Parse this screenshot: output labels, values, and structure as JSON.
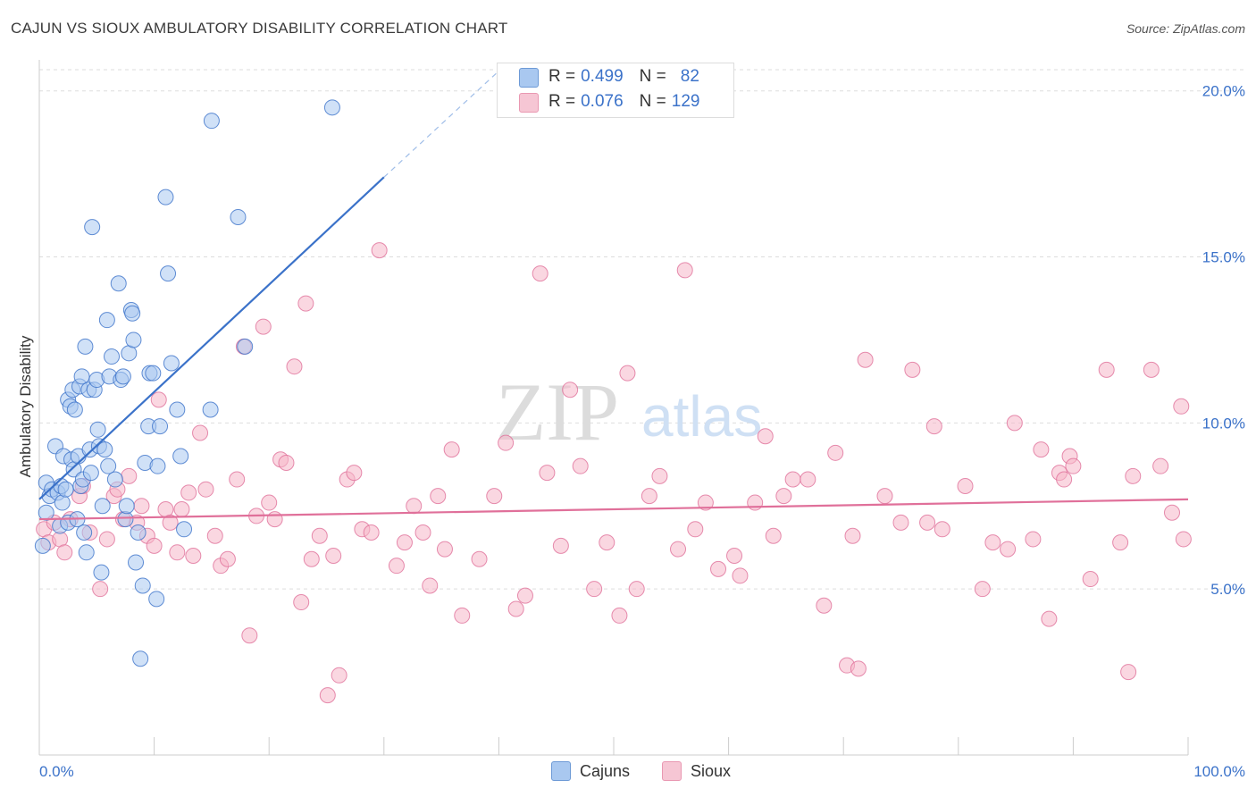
{
  "header": {
    "title": "CAJUN VS SIOUX AMBULATORY DISABILITY CORRELATION CHART",
    "source": "Source: ZipAtlas.com"
  },
  "watermark": {
    "zip": "ZIP",
    "atlas": "atlas"
  },
  "legend_top": {
    "rows": [
      {
        "r_label": "R = ",
        "r_value": "0.499",
        "n_label": "N = ",
        "n_value": "82",
        "color": "#a9c8f0"
      },
      {
        "r_label": "R = ",
        "r_value": "0.076",
        "n_label": "N = ",
        "n_value": "129",
        "color": "#f6b6c8"
      }
    ]
  },
  "legend_bottom": {
    "items": [
      {
        "label": "Cajuns",
        "color": "#a9c8f0"
      },
      {
        "label": "Sioux",
        "color": "#f6b6c8"
      }
    ]
  },
  "chart_data": {
    "type": "scatter",
    "xlabel": "",
    "ylabel": "Ambulatory Disability",
    "xlim": [
      0,
      100
    ],
    "ylim": [
      0,
      20.8
    ],
    "x_tick_labels": [
      "0.0%",
      "100.0%"
    ],
    "y_ticks": [
      5,
      10,
      15,
      20
    ],
    "y_tick_labels": [
      "5.0%",
      "10.0%",
      "15.0%",
      "20.0%"
    ],
    "grid": true,
    "colors": {
      "cajuns": "#3b72c9",
      "sioux": "#e0709a",
      "cajuns_fill": "#a9c8f0",
      "sioux_fill": "#f6b6c8",
      "axis_text": "#3b72c9"
    },
    "series": [
      {
        "name": "Cajuns",
        "trend": {
          "x0": 0,
          "y0": 7.7,
          "x1": 30,
          "y1": 17.4,
          "dash_to_x": 40,
          "dash_to_y": 20.6
        },
        "points": [
          [
            0.3,
            6.3
          ],
          [
            0.6,
            7.3
          ],
          [
            0.6,
            8.2
          ],
          [
            0.9,
            7.8
          ],
          [
            1.1,
            8.0
          ],
          [
            1.4,
            9.3
          ],
          [
            1.6,
            7.9
          ],
          [
            1.8,
            6.9
          ],
          [
            1.9,
            8.1
          ],
          [
            2.0,
            7.6
          ],
          [
            2.1,
            9.0
          ],
          [
            2.3,
            8.0
          ],
          [
            2.5,
            10.7
          ],
          [
            2.5,
            7.0
          ],
          [
            2.7,
            10.5
          ],
          [
            2.8,
            8.9
          ],
          [
            2.9,
            11.0
          ],
          [
            3.0,
            8.6
          ],
          [
            3.1,
            10.4
          ],
          [
            3.3,
            7.1
          ],
          [
            3.4,
            9.0
          ],
          [
            3.5,
            11.1
          ],
          [
            3.6,
            8.1
          ],
          [
            3.7,
            11.4
          ],
          [
            3.8,
            8.3
          ],
          [
            3.9,
            6.7
          ],
          [
            4.0,
            12.3
          ],
          [
            4.1,
            6.1
          ],
          [
            4.3,
            11.0
          ],
          [
            4.4,
            9.2
          ],
          [
            4.5,
            8.5
          ],
          [
            4.6,
            15.9
          ],
          [
            4.8,
            11.0
          ],
          [
            5.0,
            11.3
          ],
          [
            5.1,
            9.8
          ],
          [
            5.2,
            9.3
          ],
          [
            5.4,
            5.5
          ],
          [
            5.5,
            7.5
          ],
          [
            5.7,
            9.2
          ],
          [
            5.9,
            13.1
          ],
          [
            6.0,
            8.7
          ],
          [
            6.1,
            11.4
          ],
          [
            6.3,
            12.0
          ],
          [
            6.6,
            8.3
          ],
          [
            6.9,
            14.2
          ],
          [
            7.1,
            11.3
          ],
          [
            7.3,
            11.4
          ],
          [
            7.5,
            7.1
          ],
          [
            7.6,
            7.5
          ],
          [
            7.8,
            12.1
          ],
          [
            8.0,
            13.4
          ],
          [
            8.1,
            13.3
          ],
          [
            8.2,
            12.5
          ],
          [
            8.4,
            5.8
          ],
          [
            8.6,
            6.7
          ],
          [
            8.8,
            2.9
          ],
          [
            9.0,
            5.1
          ],
          [
            9.2,
            8.8
          ],
          [
            9.5,
            9.9
          ],
          [
            9.6,
            11.5
          ],
          [
            9.9,
            11.5
          ],
          [
            10.2,
            4.7
          ],
          [
            10.3,
            8.7
          ],
          [
            10.5,
            9.9
          ],
          [
            11.0,
            16.8
          ],
          [
            11.2,
            14.5
          ],
          [
            11.5,
            11.8
          ],
          [
            12.0,
            10.4
          ],
          [
            12.3,
            9.0
          ],
          [
            12.6,
            6.8
          ],
          [
            14.9,
            10.4
          ],
          [
            15.0,
            19.1
          ],
          [
            17.3,
            16.2
          ],
          [
            17.9,
            12.3
          ],
          [
            25.5,
            19.5
          ]
        ]
      },
      {
        "name": "Sioux",
        "trend": {
          "x0": 0,
          "y0": 7.1,
          "x1": 100,
          "y1": 7.7
        },
        "points": [
          [
            0.4,
            6.8
          ],
          [
            0.8,
            6.4
          ],
          [
            1.3,
            7.0
          ],
          [
            1.8,
            6.5
          ],
          [
            2.2,
            6.1
          ],
          [
            2.7,
            7.1
          ],
          [
            3.5,
            7.8
          ],
          [
            3.8,
            8.1
          ],
          [
            4.4,
            6.7
          ],
          [
            5.3,
            5.0
          ],
          [
            5.9,
            6.5
          ],
          [
            6.5,
            7.8
          ],
          [
            6.8,
            8.0
          ],
          [
            7.3,
            7.1
          ],
          [
            7.8,
            8.4
          ],
          [
            8.5,
            7.0
          ],
          [
            8.9,
            7.5
          ],
          [
            9.4,
            6.6
          ],
          [
            10.0,
            6.3
          ],
          [
            10.4,
            10.7
          ],
          [
            11.0,
            7.4
          ],
          [
            11.4,
            7.0
          ],
          [
            12.0,
            6.1
          ],
          [
            12.4,
            7.4
          ],
          [
            13.0,
            7.9
          ],
          [
            13.4,
            6.0
          ],
          [
            14.0,
            9.7
          ],
          [
            14.5,
            8.0
          ],
          [
            15.3,
            6.6
          ],
          [
            15.8,
            5.7
          ],
          [
            16.4,
            5.9
          ],
          [
            17.2,
            8.3
          ],
          [
            17.8,
            12.3
          ],
          [
            18.3,
            3.6
          ],
          [
            18.9,
            7.2
          ],
          [
            19.5,
            12.9
          ],
          [
            20.0,
            7.6
          ],
          [
            20.5,
            7.1
          ],
          [
            21.0,
            8.9
          ],
          [
            21.5,
            8.8
          ],
          [
            22.2,
            11.7
          ],
          [
            22.8,
            4.6
          ],
          [
            23.2,
            13.6
          ],
          [
            23.7,
            5.9
          ],
          [
            24.4,
            6.6
          ],
          [
            25.1,
            1.8
          ],
          [
            25.6,
            6.0
          ],
          [
            26.1,
            2.4
          ],
          [
            26.8,
            8.3
          ],
          [
            27.4,
            8.5
          ],
          [
            28.1,
            6.8
          ],
          [
            28.9,
            6.7
          ],
          [
            29.6,
            15.2
          ],
          [
            31.1,
            5.7
          ],
          [
            31.8,
            6.4
          ],
          [
            32.6,
            7.5
          ],
          [
            33.4,
            6.7
          ],
          [
            34.0,
            5.1
          ],
          [
            34.7,
            7.8
          ],
          [
            35.3,
            6.2
          ],
          [
            35.9,
            9.2
          ],
          [
            36.8,
            4.2
          ],
          [
            38.3,
            5.9
          ],
          [
            39.6,
            7.8
          ],
          [
            40.6,
            9.4
          ],
          [
            41.5,
            4.4
          ],
          [
            42.3,
            4.8
          ],
          [
            43.6,
            14.5
          ],
          [
            44.2,
            8.5
          ],
          [
            45.4,
            6.3
          ],
          [
            46.2,
            11.0
          ],
          [
            47.1,
            8.7
          ],
          [
            48.3,
            5.0
          ],
          [
            49.4,
            6.4
          ],
          [
            50.5,
            4.2
          ],
          [
            51.2,
            11.5
          ],
          [
            52.0,
            5.0
          ],
          [
            53.1,
            7.8
          ],
          [
            54.0,
            8.4
          ],
          [
            55.6,
            6.2
          ],
          [
            56.2,
            14.6
          ],
          [
            57.1,
            6.8
          ],
          [
            58.0,
            7.6
          ],
          [
            59.1,
            5.6
          ],
          [
            60.5,
            6.0
          ],
          [
            61.0,
            5.4
          ],
          [
            62.3,
            7.6
          ],
          [
            63.2,
            9.6
          ],
          [
            63.9,
            6.6
          ],
          [
            64.8,
            7.8
          ],
          [
            65.6,
            8.3
          ],
          [
            66.9,
            8.3
          ],
          [
            68.3,
            4.5
          ],
          [
            69.3,
            9.1
          ],
          [
            70.3,
            2.7
          ],
          [
            70.8,
            6.6
          ],
          [
            71.3,
            2.6
          ],
          [
            71.9,
            11.9
          ],
          [
            73.6,
            7.8
          ],
          [
            75.0,
            7.0
          ],
          [
            76.0,
            11.6
          ],
          [
            77.3,
            7.0
          ],
          [
            77.9,
            9.9
          ],
          [
            78.6,
            6.8
          ],
          [
            80.6,
            8.1
          ],
          [
            82.1,
            5.0
          ],
          [
            83.0,
            6.4
          ],
          [
            84.3,
            6.2
          ],
          [
            84.9,
            10.0
          ],
          [
            86.5,
            6.5
          ],
          [
            87.2,
            9.2
          ],
          [
            87.9,
            4.1
          ],
          [
            88.8,
            8.5
          ],
          [
            89.2,
            8.3
          ],
          [
            89.7,
            9.0
          ],
          [
            90.0,
            8.7
          ],
          [
            91.5,
            5.3
          ],
          [
            92.9,
            11.6
          ],
          [
            94.1,
            6.4
          ],
          [
            94.8,
            2.5
          ],
          [
            95.2,
            8.4
          ],
          [
            96.8,
            11.6
          ],
          [
            97.6,
            8.7
          ],
          [
            98.6,
            7.3
          ],
          [
            99.4,
            10.5
          ],
          [
            99.6,
            6.5
          ]
        ]
      }
    ]
  }
}
